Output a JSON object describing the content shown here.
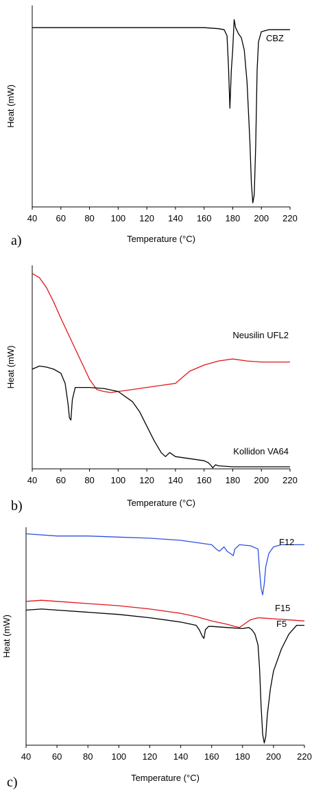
{
  "chart_data": [
    {
      "type": "line",
      "panel_label": "a)",
      "xlabel": "Temperature (°C)",
      "ylabel": "Heat (mW)",
      "xlim": [
        40,
        220
      ],
      "xticks": [
        40,
        60,
        80,
        100,
        120,
        140,
        160,
        180,
        200,
        220
      ],
      "ylim": [
        0,
        100
      ],
      "yticks_shown": false,
      "grid": false,
      "series": [
        {
          "name": "CBZ",
          "color": "#000000",
          "x": [
            40,
            80,
            120,
            160,
            170,
            174,
            176,
            177,
            178,
            179,
            180,
            181,
            182,
            184,
            186,
            188,
            190,
            192,
            193,
            194,
            195,
            196,
            197,
            198,
            200,
            205,
            220
          ],
          "y": [
            89,
            89,
            89,
            89,
            88.5,
            88,
            85,
            70,
            49,
            68,
            78,
            93,
            89,
            86,
            84,
            78,
            62,
            32,
            12,
            2,
            6,
            30,
            68,
            82,
            87,
            88,
            88
          ]
        }
      ]
    },
    {
      "type": "line",
      "panel_label": "b)",
      "xlabel": "Temperature (°C)",
      "ylabel": "Heat (mW)",
      "xlim": [
        40,
        220
      ],
      "xticks": [
        40,
        60,
        80,
        100,
        120,
        140,
        160,
        180,
        200,
        220
      ],
      "ylim": [
        0,
        100
      ],
      "yticks_shown": false,
      "grid": false,
      "series": [
        {
          "name": "Neusilin UFL2",
          "color": "#e0151b",
          "x": [
            40,
            45,
            50,
            55,
            60,
            70,
            80,
            85,
            90,
            95,
            100,
            110,
            120,
            130,
            140,
            145,
            150,
            160,
            170,
            180,
            190,
            200,
            210,
            220
          ],
          "y": [
            96,
            94,
            89,
            82,
            74,
            59,
            44,
            39,
            38,
            37.5,
            38,
            39,
            40,
            41,
            42,
            45,
            48,
            51,
            53,
            54,
            53,
            52.5,
            52.5,
            52.5
          ]
        },
        {
          "name": "Kollidon VA64",
          "color": "#000000",
          "x": [
            40,
            45,
            50,
            55,
            60,
            63,
            65,
            66,
            67,
            68,
            70,
            80,
            90,
            100,
            110,
            115,
            120,
            125,
            130,
            133,
            136,
            140,
            145,
            150,
            155,
            160,
            163,
            165,
            166,
            168,
            170,
            180,
            200,
            220
          ],
          "y": [
            49,
            50.5,
            50,
            49,
            47,
            42,
            32,
            25,
            24,
            34,
            40,
            40,
            39.5,
            38,
            33,
            28,
            21,
            14,
            8,
            6,
            8,
            6,
            5.5,
            5,
            4.5,
            4,
            3,
            1.5,
            0.5,
            2,
            1.5,
            1,
            1,
            1
          ]
        }
      ]
    },
    {
      "type": "line",
      "panel_label": "c)",
      "xlabel": "Temperature (°C)",
      "ylabel": "Heat (mW)",
      "xlim": [
        40,
        220
      ],
      "xticks": [
        40,
        60,
        80,
        100,
        120,
        140,
        160,
        180,
        200,
        220
      ],
      "ylim": [
        0,
        100
      ],
      "yticks_shown": false,
      "grid": false,
      "series": [
        {
          "name": "F12",
          "color": "#2f4fe0",
          "x": [
            40,
            60,
            80,
            100,
            120,
            140,
            160,
            163,
            165,
            168,
            170,
            172,
            174,
            175,
            178,
            185,
            190,
            191,
            192,
            193,
            194,
            195,
            197,
            200,
            205,
            210,
            220
          ],
          "y": [
            97,
            96,
            96,
            95.5,
            95,
            94,
            92,
            90,
            89,
            91,
            89,
            88,
            87,
            90,
            92,
            91.5,
            90,
            80,
            72,
            69,
            74,
            82,
            88,
            91,
            92,
            92,
            92
          ]
        },
        {
          "name": "F15",
          "color": "#e0151b",
          "x": [
            40,
            50,
            60,
            80,
            100,
            120,
            140,
            150,
            160,
            170,
            175,
            178,
            180,
            185,
            190,
            200,
            210,
            220
          ],
          "y": [
            66,
            66.5,
            66,
            65,
            64,
            62.5,
            60.5,
            59,
            57,
            55.5,
            54.5,
            54,
            55,
            57.5,
            58.5,
            58,
            57.5,
            57
          ]
        },
        {
          "name": "F5",
          "color": "#000000",
          "x": [
            40,
            50,
            60,
            80,
            100,
            120,
            140,
            150,
            152,
            154,
            155,
            156,
            158,
            160,
            170,
            180,
            184,
            186,
            188,
            190,
            191,
            192,
            193,
            194,
            195,
            196,
            198,
            200,
            205,
            210,
            215,
            220
          ],
          "y": [
            62,
            62.5,
            62,
            61,
            60,
            58.5,
            56.5,
            55,
            53,
            50,
            49,
            53,
            54.5,
            54.5,
            54,
            53.5,
            54,
            53,
            51,
            46,
            35,
            18,
            5,
            1,
            4,
            14,
            26,
            34,
            44,
            51,
            55,
            55
          ]
        }
      ]
    }
  ]
}
